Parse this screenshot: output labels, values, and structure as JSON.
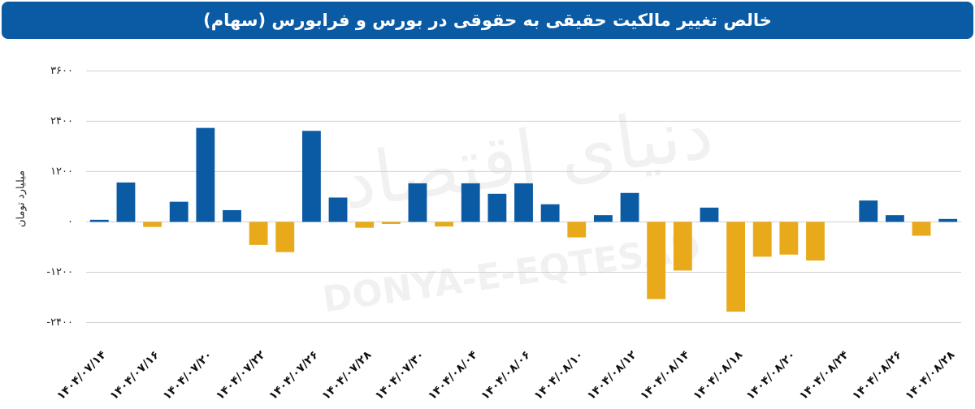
{
  "chart_data": {
    "type": "bar",
    "title": "خالص تغییر مالکیت حقیقی به حقوقی در بورس و فرابورس (سهام)",
    "y_label": "میلیارد تومان",
    "watermarks": [
      "DONYA-E-EQTESAD",
      "دنیای اقتصاد"
    ],
    "categories": [
      "۱۴۰۴/۰۷/۱۴",
      null,
      "۱۴۰۴/۰۷/۱۶",
      null,
      "۱۴۰۴/۰۷/۲۰",
      null,
      "۱۴۰۴/۰۷/۲۲",
      null,
      "۱۴۰۴/۰۷/۲۶",
      null,
      "۱۴۰۴/۰۷/۲۸",
      null,
      "۱۴۰۴/۰۷/۳۰",
      null,
      "۱۴۰۴/۰۸/۰۴",
      null,
      "۱۴۰۴/۰۸/۰۶",
      null,
      "۱۴۰۴/۰۸/۱۰",
      null,
      "۱۴۰۴/۰۸/۱۲",
      null,
      "۱۴۰۴/۰۸/۱۴",
      null,
      "۱۴۰۴/۰۸/۱۸",
      null,
      "۱۴۰۴/۰۸/۲۰",
      null,
      "۱۴۰۴/۰۸/۲۴",
      null,
      "۱۴۰۴/۰۸/۲۶",
      null,
      "۱۴۰۴/۰۸/۲۸"
    ],
    "values": [
      50,
      940,
      -120,
      480,
      2240,
      280,
      -550,
      -720,
      2170,
      580,
      -140,
      -50,
      920,
      -110,
      920,
      670,
      920,
      420,
      -370,
      160,
      690,
      -1840,
      -1160,
      340,
      -2140,
      -830,
      -780,
      -920,
      0,
      510,
      160,
      -330,
      70
    ],
    "positive_color": "#0a5aa4",
    "negative_color": "#e8aa1a",
    "ylim": [
      -2700,
      3800
    ],
    "yticks": [
      {
        "value": 3600,
        "label": "۳۶۰۰"
      },
      {
        "value": 2400,
        "label": "۲۴۰۰"
      },
      {
        "value": 1200,
        "label": "۱۲۰۰"
      },
      {
        "value": 0,
        "label": "۰"
      },
      {
        "value": -1200,
        "label": "-۱۲۰۰"
      },
      {
        "value": -2400,
        "label": "-۲۴۰۰"
      }
    ],
    "grid": true
  }
}
